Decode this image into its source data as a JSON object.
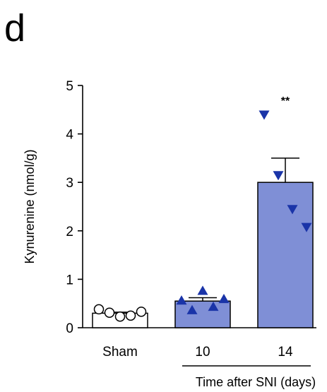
{
  "panel_label": "d",
  "chart_data": {
    "type": "bar",
    "categories": [
      "Sham",
      "10",
      "14"
    ],
    "values": [
      0.3,
      0.55,
      3.0
    ],
    "errors": [
      0.02,
      0.07,
      0.5
    ],
    "ylabel": "Kynurenine (nmol/g)",
    "xlabel": "Time after SNI (days)",
    "ylim": [
      0,
      5
    ],
    "yticks": [
      0,
      1,
      2,
      3,
      4,
      5
    ],
    "points": [
      [
        0.38,
        0.31,
        0.23,
        0.25,
        0.33
      ],
      [
        0.56,
        0.36,
        0.76,
        0.43,
        0.59
      ],
      [
        4.4,
        3.15,
        2.45,
        2.08
      ]
    ],
    "marker_shapes": [
      "circle",
      "triangle-up",
      "triangle-down"
    ],
    "bar_fills": [
      "#ffffff",
      "#7f8fd6",
      "#7f8fd6"
    ],
    "marker_fills": [
      "#ffffff",
      "#1a34a8",
      "#1a34a8"
    ],
    "annotations": [
      {
        "category": "14",
        "text": "**"
      }
    ],
    "grid": false
  }
}
